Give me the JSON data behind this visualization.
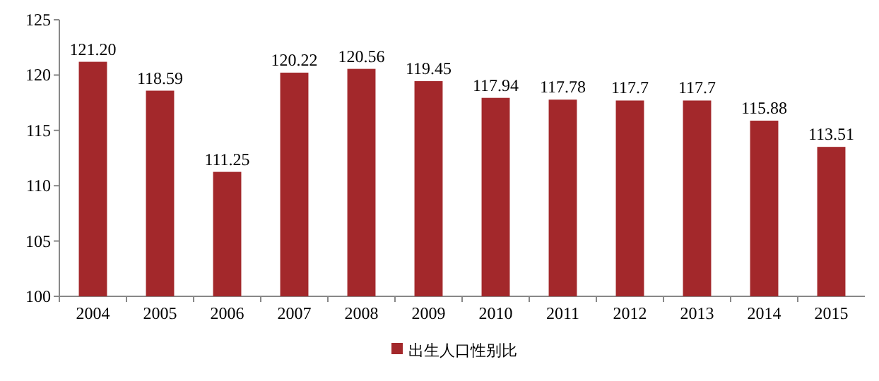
{
  "chart_data": {
    "type": "bar",
    "categories": [
      "2004",
      "2005",
      "2006",
      "2007",
      "2008",
      "2009",
      "2010",
      "2011",
      "2012",
      "2013",
      "2014",
      "2015"
    ],
    "series": [
      {
        "name": "出生人口性别比",
        "color": "#a3282b",
        "values": [
          121.2,
          118.59,
          111.25,
          120.22,
          120.56,
          119.45,
          117.94,
          117.78,
          117.7,
          117.7,
          115.88,
          113.51
        ],
        "value_labels": [
          "121.20",
          "118.59",
          "111.25",
          "120.22",
          "120.56",
          "119.45",
          "117.94",
          "117.78",
          "117.7",
          "117.7",
          "115.88",
          "113.51"
        ]
      }
    ],
    "ylim": [
      100,
      125
    ],
    "yticks": [
      100,
      105,
      110,
      115,
      120,
      125
    ],
    "legend": "bottom"
  }
}
